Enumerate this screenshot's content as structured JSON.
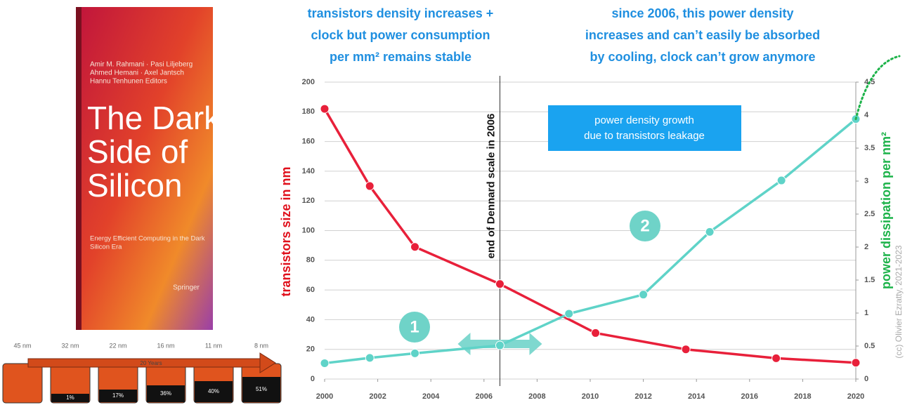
{
  "chart_data": {
    "type": "line",
    "annotations": {
      "left_note": [
        "transistors density increases +",
        "clock but power consumption",
        "per mm² remains stable"
      ],
      "right_note": [
        "since 2006, this power density",
        "increases and can’t easily be absorbed",
        "by cooling, clock can’t grow anymore"
      ],
      "dennard": "end of Dennard scale in 2006",
      "box": [
        "power density growth",
        "due to transistors leakage"
      ],
      "step1": "1",
      "step2": "2"
    },
    "ylabel": "transistors size in nm",
    "y2label": "power dissipation per nm²",
    "xlim": [
      2000,
      2020
    ],
    "xticks": [
      2000,
      2002,
      2004,
      2006,
      2008,
      2010,
      2012,
      2014,
      2016,
      2018,
      2020
    ],
    "ylim": [
      0,
      200
    ],
    "yticks": [
      0,
      20,
      40,
      60,
      80,
      100,
      120,
      140,
      160,
      180,
      200
    ],
    "y2lim": [
      0,
      4.5
    ],
    "y2ticks": [
      0,
      0.5,
      1,
      1.5,
      2,
      2.5,
      3,
      3.5,
      4,
      4.5
    ],
    "grid": true,
    "series": [
      {
        "color": "#e8203a",
        "x": [
          2000,
          2001.7,
          2003.4,
          2006.6,
          2010.2,
          2013.6,
          2017,
          2020
        ],
        "values": [
          182,
          130,
          89,
          64,
          31,
          20,
          14,
          11
        ]
      },
      {
        "color": "#5fd3c8",
        "axis": "y2",
        "x": [
          2000,
          2001.7,
          2003.4,
          2006.6,
          2009.2,
          2012,
          2014.5,
          2017.2,
          2020
        ],
        "values": [
          0.24,
          0.32,
          0.39,
          0.51,
          0.99,
          1.28,
          2.23,
          3.01,
          3.94
        ]
      }
    ]
  },
  "book": {
    "authors": [
      "Amir M. Rahmani · Pasi Liljeberg",
      "Ahmed Hemani · Axel Jantsch",
      "Hannu Tenhunen  Editors"
    ],
    "title": [
      "The Dark",
      "Side of",
      "Silicon"
    ],
    "subtitle": [
      "Energy Efficient Computing in the Dark",
      "Silicon Era"
    ],
    "publisher": "Springer"
  },
  "chip_strip": {
    "nodes": [
      "45 nm",
      "32 nm",
      "22 nm",
      "16 nm",
      "11 nm",
      "8 nm"
    ],
    "span": "20 Years",
    "shares": [
      "1%",
      "17%",
      "36%",
      "40%",
      "51%"
    ]
  },
  "credit": "(cc) Olivier Ezratty, 2021-2023"
}
